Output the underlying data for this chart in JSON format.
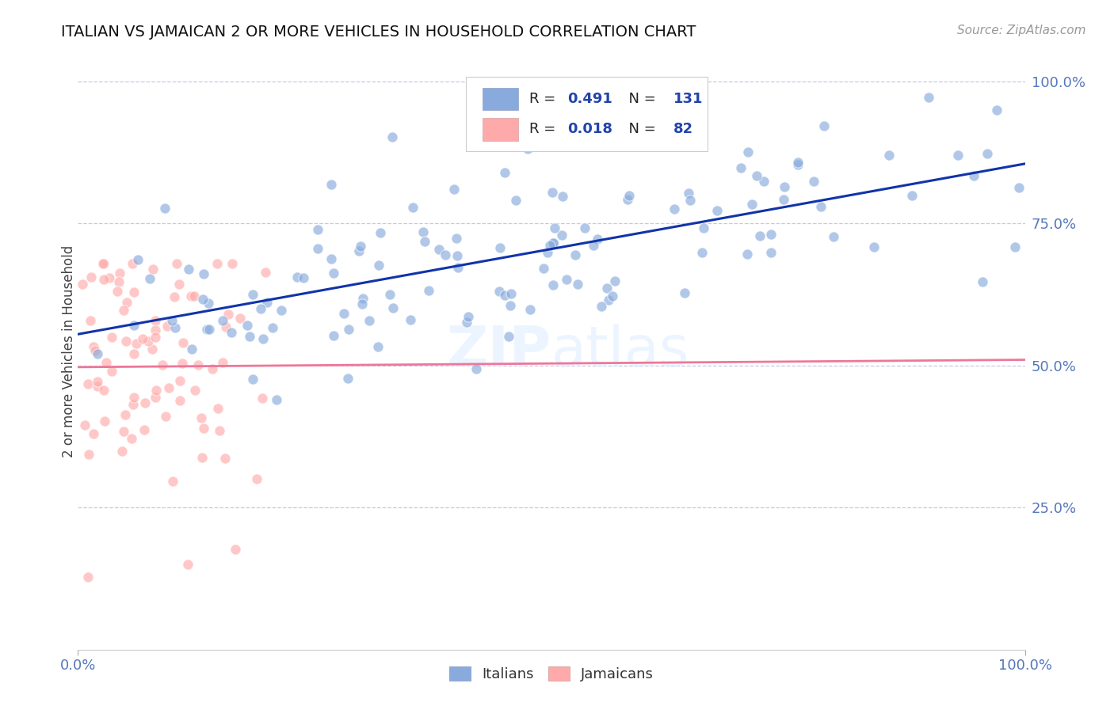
{
  "title": "ITALIAN VS JAMAICAN 2 OR MORE VEHICLES IN HOUSEHOLD CORRELATION CHART",
  "source": "Source: ZipAtlas.com",
  "ylabel": "2 or more Vehicles in Household",
  "xlim": [
    0.0,
    1.0
  ],
  "ylim": [
    0.0,
    1.05
  ],
  "xtick_positions": [
    0.0,
    1.0
  ],
  "xtick_labels": [
    "0.0%",
    "100.0%"
  ],
  "ytick_positions": [
    0.25,
    0.5,
    0.75,
    1.0
  ],
  "ytick_labels": [
    "25.0%",
    "50.0%",
    "75.0%",
    "100.0%"
  ],
  "tick_color": "#5577BB",
  "italian_color": "#88AADD",
  "jamaican_color": "#FFAAAA",
  "italian_line_color": "#1133AA",
  "jamaican_line_color": "#EE7799",
  "background_color": "#FFFFFF",
  "grid_color": "#BBBBDD",
  "watermark": "ZIPatlas",
  "watermark_color": "#DDEEFF",
  "legend_R_italian": "0.491",
  "legend_N_italian": "131",
  "legend_R_jamaican": "0.018",
  "legend_N_jamaican": "82",
  "italian_line_x0": 0.0,
  "italian_line_y0": 0.555,
  "italian_line_x1": 1.0,
  "italian_line_y1": 0.855,
  "jamaican_line_x0": 0.0,
  "jamaican_line_y0": 0.497,
  "jamaican_line_x1": 1.0,
  "jamaican_line_y1": 0.51,
  "n_italian": 131,
  "n_jamaican": 82
}
